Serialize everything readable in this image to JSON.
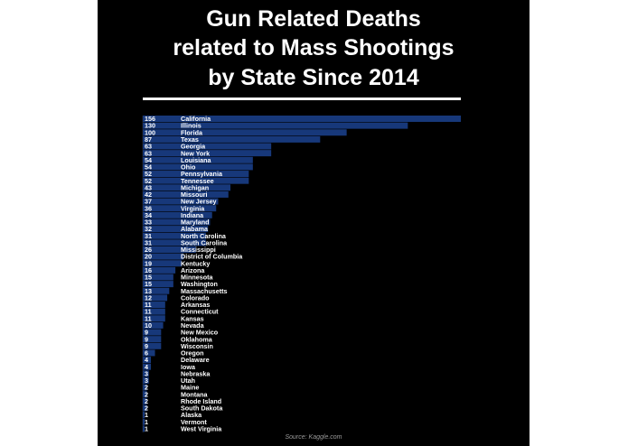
{
  "chart_data": {
    "type": "bar",
    "orientation": "horizontal",
    "title": "Gun Related Deaths related to Mass Shootings by State Since 2014",
    "title_lines": [
      "Gun Related Deaths",
      "related to Mass Shootings",
      "by State Since 2014"
    ],
    "xlabel": "",
    "ylabel": "",
    "xlim": [
      0,
      156
    ],
    "grid": false,
    "bar_color": "#17387a",
    "background_color": "#000000",
    "text_color": "#ffffff",
    "source": "Source: Kaggle.com",
    "categories": [
      "California",
      "Illinois",
      "Florida",
      "Texas",
      "Georgia",
      "New York",
      "Louisiana",
      "Ohio",
      "Pennsylvania",
      "Tennessee",
      "Michigan",
      "Missouri",
      "New Jersey",
      "Virginia",
      "Indiana",
      "Maryland",
      "Alabama",
      "North Carolina",
      "South Carolina",
      "Mississippi",
      "District of Columbia",
      "Kentucky",
      "Arizona",
      "Minnesota",
      "Washington",
      "Massachusetts",
      "Colorado",
      "Arkansas",
      "Connecticut",
      "Kansas",
      "Nevada",
      "New Mexico",
      "Oklahoma",
      "Wisconsin",
      "Oregon",
      "Delaware",
      "Iowa",
      "Nebraska",
      "Utah",
      "Maine",
      "Montana",
      "Rhode Island",
      "South Dakota",
      "Alaska",
      "Vermont",
      "West Virginia"
    ],
    "values": [
      156,
      130,
      100,
      87,
      63,
      63,
      54,
      54,
      52,
      52,
      43,
      42,
      37,
      36,
      34,
      33,
      32,
      31,
      31,
      26,
      20,
      19,
      16,
      15,
      15,
      13,
      12,
      11,
      11,
      11,
      10,
      9,
      9,
      9,
      6,
      4,
      4,
      3,
      3,
      2,
      2,
      2,
      2,
      1,
      1,
      1
    ]
  }
}
